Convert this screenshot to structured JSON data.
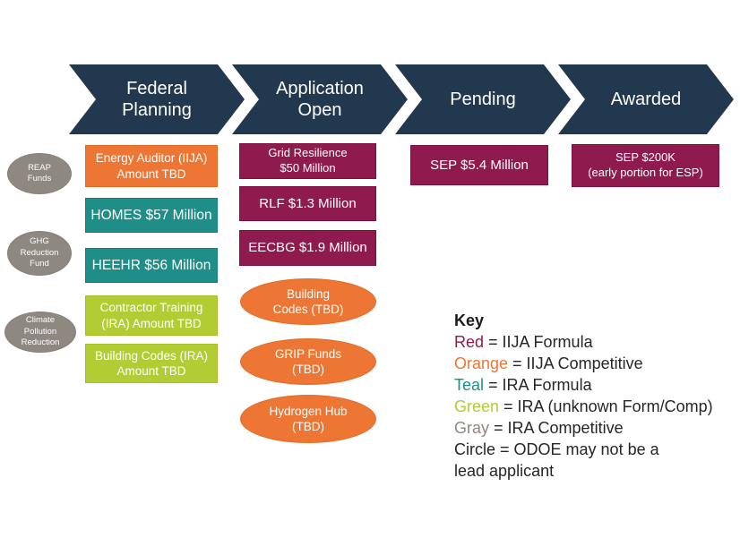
{
  "colors": {
    "navy": "#22384E",
    "maroon": "#8F1A4D",
    "maroon_border": "#7C1142",
    "orange": "#ED7634",
    "orange_border": "#E56A24",
    "teal": "#1F8E88",
    "teal_border": "#17817B",
    "green": "#B2CC34",
    "green_border": "#A6BF2A",
    "gray": "#8E8880",
    "gray_border": "#868078",
    "key_text": "#262626"
  },
  "stages": [
    {
      "label": "Federal\nPlanning"
    },
    {
      "label": "Application\nOpen"
    },
    {
      "label": "Pending"
    },
    {
      "label": "Awarded"
    }
  ],
  "planning_circles": [
    {
      "label": "REAP\nFunds",
      "color": "gray"
    },
    {
      "label": "GHG\nReduction\nFund",
      "color": "gray"
    },
    {
      "label": "Climate\nPollution\nReduction",
      "color": "gray"
    }
  ],
  "federal_planning_boxes": [
    {
      "label": "Energy Auditor (IIJA)\nAmount TBD",
      "color": "orange"
    },
    {
      "label": "HOMES $57 Million",
      "color": "teal"
    },
    {
      "label": "HEEHR $56 Million",
      "color": "teal"
    },
    {
      "label": "Contractor Training\n(IRA) Amount TBD",
      "color": "green"
    },
    {
      "label": "Building Codes (IRA)\nAmount TBD",
      "color": "green"
    }
  ],
  "application_open_boxes": [
    {
      "label": "Grid Resilience\n$50 Million",
      "color": "maroon"
    },
    {
      "label": "RLF $1.3 Million",
      "color": "maroon"
    },
    {
      "label": "EECBG $1.9 Million",
      "color": "maroon"
    }
  ],
  "application_open_circles": [
    {
      "label": "Building\nCodes (TBD)",
      "color": "orange"
    },
    {
      "label": "GRIP Funds\n(TBD)",
      "color": "orange"
    },
    {
      "label": "Hydrogen Hub\n(TBD)",
      "color": "orange"
    }
  ],
  "pending_boxes": [
    {
      "label": "SEP $5.4 Million",
      "color": "maroon"
    }
  ],
  "awarded_boxes": [
    {
      "label": "SEP $200K\n(early portion for ESP)",
      "color": "maroon"
    }
  ],
  "key": {
    "title": "Key",
    "entries": [
      {
        "term": "Red",
        "color": "#8F1A4D",
        "definition": " = IIJA Formula"
      },
      {
        "term": "Orange",
        "color": "#ED7634",
        "definition": " = IIJA Competitive"
      },
      {
        "term": "Teal",
        "color": "#1F8E88",
        "definition": " = IRA Formula"
      },
      {
        "term": "Green",
        "color": "#B2CC34",
        "definition": " = IRA (unknown Form/Comp)"
      },
      {
        "term": "Gray",
        "color": "#8E8880",
        "definition": " = IRA Competitive"
      },
      {
        "term": "Circle",
        "definition": " = ODOE may not be a\nlead applicant"
      }
    ]
  }
}
